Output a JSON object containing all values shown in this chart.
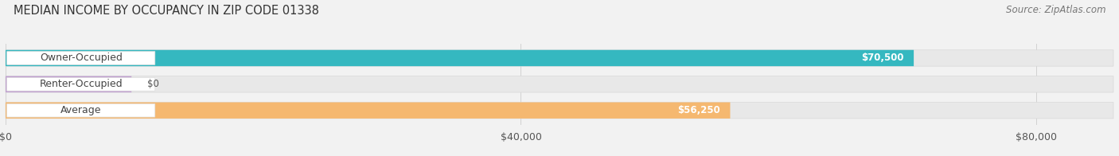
{
  "title": "MEDIAN INCOME BY OCCUPANCY IN ZIP CODE 01338",
  "source_text": "Source: ZipAtlas.com",
  "categories": [
    "Owner-Occupied",
    "Renter-Occupied",
    "Average"
  ],
  "values": [
    70500,
    0,
    56250
  ],
  "value_labels": [
    "$70,500",
    "$0",
    "$56,250"
  ],
  "bar_colors": [
    "#35b8c0",
    "#c0a0d0",
    "#f5b870"
  ],
  "xlim": [
    0,
    80000
  ],
  "x_max_display": 86000,
  "xtick_values": [
    0,
    40000,
    80000
  ],
  "xtick_labels": [
    "$0",
    "$40,000",
    "$80,000"
  ],
  "background_color": "#f2f2f2",
  "title_fontsize": 10.5,
  "source_fontsize": 8.5,
  "label_fontsize": 9,
  "value_fontsize": 8.5,
  "tick_fontsize": 9,
  "bar_height": 0.62,
  "fig_width": 14.06,
  "fig_height": 1.96
}
